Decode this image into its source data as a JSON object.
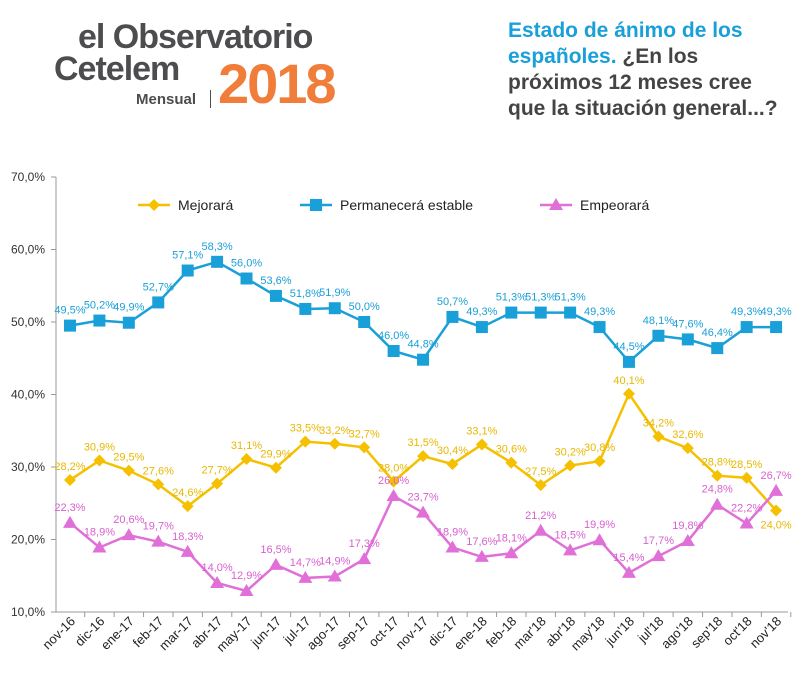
{
  "logo": {
    "line1": "el Observatorio",
    "line2": "Cetelem",
    "line3": "Mensual",
    "year": "2018"
  },
  "title": {
    "highlight": "Estado de ánimo de los españoles.",
    "rest": " ¿En los próximos 12 meses cree que la situación general...?"
  },
  "chart_data": {
    "type": "line",
    "categories": [
      "nov-16",
      "dic-16",
      "ene-17",
      "feb-17",
      "mar-17",
      "abr-17",
      "may-17",
      "jun-17",
      "jul-17",
      "ago-17",
      "sep-17",
      "oct-17",
      "nov-17",
      "dic-17",
      "ene-18",
      "feb-18",
      "mar'18",
      "abr'18",
      "may'18",
      "jun'18",
      "jul'18",
      "ago'18",
      "sep'18",
      "oct'18",
      "nov'18"
    ],
    "ylim": [
      10,
      70
    ],
    "yticks": [
      "10,0%",
      "20,0%",
      "30,0%",
      "40,0%",
      "50,0%",
      "60,0%",
      "70,0%"
    ],
    "legend_position": "top",
    "grid": false,
    "series": [
      {
        "name": "Mejorará",
        "color": "#f5c000",
        "label_color": "#e8b800",
        "marker": "diamond",
        "values": [
          28.2,
          30.9,
          29.5,
          27.6,
          24.6,
          27.7,
          31.1,
          29.9,
          33.5,
          33.2,
          32.7,
          28.0,
          31.5,
          30.4,
          33.1,
          30.6,
          27.5,
          30.2,
          30.8,
          40.1,
          34.2,
          32.6,
          28.8,
          28.5,
          24.0
        ],
        "labels": [
          "28,2%",
          "30,9%",
          "29,5%",
          "27,6%",
          "24,6%",
          "27,7%",
          "31,1%",
          "29,9%",
          "33,5%",
          "33,2%",
          "32,7%",
          "28,0%",
          "31,5%",
          "30,4%",
          "33,1%",
          "30,6%",
          "27,5%",
          "30,2%",
          "30,8%",
          "40,1%",
          "34,2%",
          "32,6%",
          "28,8%",
          "28,5%",
          "24,0%"
        ]
      },
      {
        "name": "Permanecerá estable",
        "color": "#1aa0d8",
        "label_color": "#1aa0d8",
        "marker": "square",
        "values": [
          49.5,
          50.2,
          49.9,
          52.7,
          57.1,
          58.3,
          56.0,
          53.6,
          51.8,
          51.9,
          50.0,
          46.0,
          44.8,
          50.7,
          49.3,
          51.3,
          51.3,
          51.3,
          49.3,
          44.5,
          48.1,
          47.6,
          46.4,
          49.3,
          49.3
        ],
        "labels": [
          "49,5%",
          "50,2%",
          "49,9%",
          "52,7%",
          "57,1%",
          "58,3%",
          "56,0%",
          "53,6%",
          "51,8%",
          "51,9%",
          "50,0%",
          "46,0%",
          "44,8%",
          "50,7%",
          "49,3%",
          "51,3%",
          "51,3%",
          "51,3%",
          "49,3%",
          "44,5%",
          "48,1%",
          "47,6%",
          "46,4%",
          "49,3%",
          "49,3%"
        ]
      },
      {
        "name": "Empeorará",
        "color": "#e070d8",
        "label_color": "#d860d0",
        "marker": "triangle",
        "values": [
          22.3,
          18.9,
          20.6,
          19.7,
          18.3,
          14.0,
          12.9,
          16.5,
          14.7,
          14.9,
          17.3,
          26.0,
          23.7,
          18.9,
          17.6,
          18.1,
          21.2,
          18.5,
          19.9,
          15.4,
          17.7,
          19.8,
          24.8,
          22.2,
          26.7
        ],
        "labels": [
          "22,3%",
          "18,9%",
          "20,6%",
          "19,7%",
          "18,3%",
          "14,0%",
          "12,9%",
          "16,5%",
          "14,7%",
          "14,9%",
          "17,3%",
          "26,0%",
          "23,7%",
          "18,9%",
          "17,6%",
          "18,1%",
          "21,2%",
          "18,5%",
          "19,9%",
          "15,4%",
          "17,7%",
          "19,8%",
          "24,8%",
          "22,2%",
          "26,7%"
        ]
      }
    ]
  }
}
